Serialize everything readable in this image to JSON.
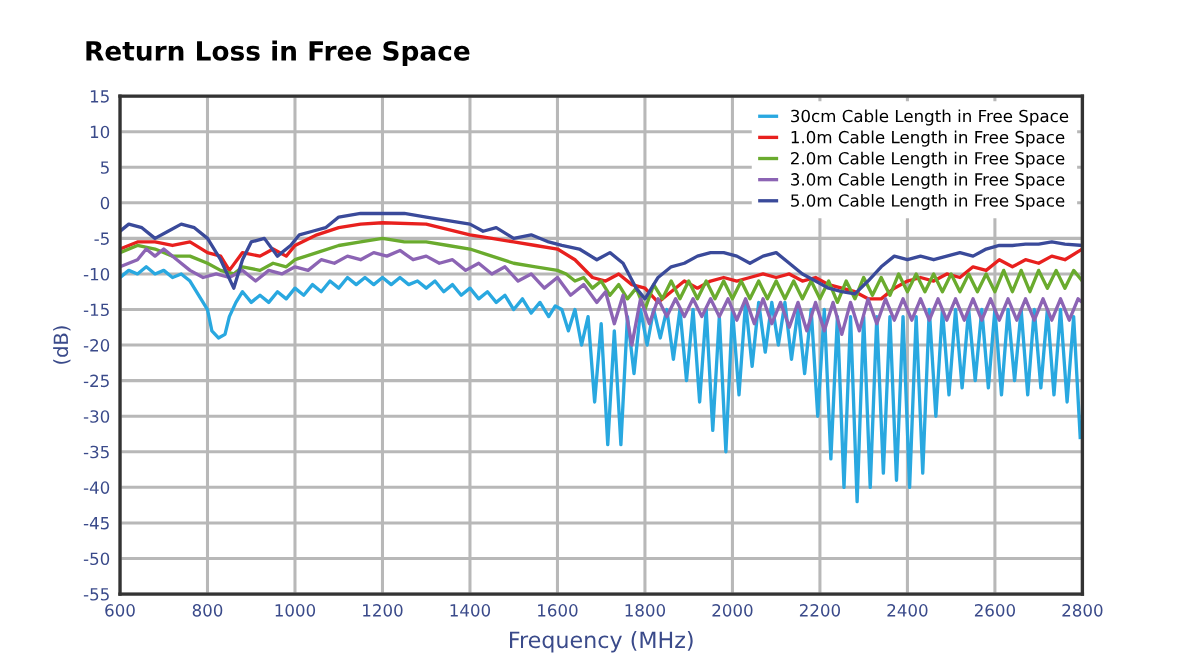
{
  "chart_data": {
    "type": "line",
    "title": "Return Loss in Free Space",
    "xlabel": "Frequency (MHz)",
    "ylabel": "(dB)",
    "xlim": [
      600,
      2800
    ],
    "xticks": [
      600,
      800,
      1000,
      1200,
      1400,
      1600,
      1800,
      2000,
      2200,
      2400,
      2600,
      2800
    ],
    "ylim": [
      -55,
      15
    ],
    "yticks": [
      -55,
      -50,
      -45,
      -40,
      -35,
      -30,
      -25,
      -20,
      -15,
      -10,
      -5,
      0,
      5,
      10,
      15
    ],
    "grid": true,
    "legend": "top right",
    "marker": "none",
    "line_style": "solid",
    "series": [
      {
        "name": "30cm Cable Length in Free Space",
        "color": "#29a8e0",
        "x": [
          600,
          620,
          640,
          660,
          680,
          700,
          720,
          740,
          760,
          780,
          800,
          810,
          825,
          840,
          850,
          865,
          880,
          900,
          920,
          940,
          960,
          980,
          1000,
          1020,
          1040,
          1060,
          1080,
          1100,
          1120,
          1140,
          1160,
          1180,
          1200,
          1220,
          1240,
          1260,
          1280,
          1300,
          1320,
          1340,
          1360,
          1380,
          1400,
          1420,
          1440,
          1460,
          1480,
          1500,
          1520,
          1540,
          1560,
          1580,
          1595,
          1610,
          1625,
          1640,
          1655,
          1670,
          1685,
          1700,
          1715,
          1730,
          1745,
          1760,
          1775,
          1790,
          1805,
          1820,
          1835,
          1850,
          1865,
          1880,
          1895,
          1910,
          1925,
          1940,
          1955,
          1970,
          1985,
          2000,
          2015,
          2030,
          2045,
          2060,
          2075,
          2090,
          2105,
          2120,
          2135,
          2150,
          2165,
          2180,
          2195,
          2210,
          2225,
          2240,
          2255,
          2270,
          2285,
          2300,
          2315,
          2330,
          2345,
          2360,
          2375,
          2390,
          2405,
          2420,
          2435,
          2450,
          2465,
          2480,
          2495,
          2510,
          2525,
          2540,
          2555,
          2570,
          2585,
          2600,
          2615,
          2630,
          2645,
          2660,
          2675,
          2690,
          2705,
          2720,
          2735,
          2750,
          2765,
          2780,
          2795
        ],
        "values": [
          -10.5,
          -9.5,
          -10,
          -9,
          -10,
          -9.5,
          -10.5,
          -10,
          -11,
          -13,
          -15,
          -18,
          -19,
          -18.5,
          -16,
          -14,
          -12.5,
          -14,
          -13,
          -14,
          -12.5,
          -13.5,
          -12,
          -13,
          -11.5,
          -12.5,
          -11,
          -12,
          -10.5,
          -11.5,
          -10.5,
          -11.5,
          -10.5,
          -11.5,
          -10.5,
          -11.5,
          -11,
          -12,
          -11,
          -12.5,
          -11.5,
          -13,
          -12,
          -13.5,
          -12.5,
          -14,
          -13,
          -15,
          -13.5,
          -15.5,
          -14,
          -16,
          -14.5,
          -15,
          -18,
          -15,
          -20,
          -16,
          -28,
          -17,
          -34,
          -18,
          -34,
          -16,
          -24,
          -15,
          -20,
          -15,
          -19,
          -15,
          -22,
          -15,
          -25,
          -15,
          -28,
          -15,
          -32,
          -16,
          -35,
          -15,
          -27,
          -14,
          -23,
          -14,
          -21,
          -14,
          -20,
          -14,
          -22,
          -15,
          -24,
          -15,
          -30,
          -15,
          -36,
          -16,
          -40,
          -16,
          -42,
          -16,
          -40,
          -16,
          -38,
          -16,
          -39,
          -16,
          -40,
          -16,
          -38,
          -15,
          -30,
          -15,
          -27,
          -15,
          -26,
          -15,
          -25,
          -15,
          -26,
          -15,
          -27,
          -15,
          -25,
          -15,
          -27,
          -15,
          -26,
          -15,
          -27,
          -15,
          -28,
          -16,
          -33
        ]
      },
      {
        "name": "1.0m Cable Length in Free Space",
        "color": "#e8201e",
        "x": [
          600,
          640,
          680,
          720,
          760,
          800,
          830,
          850,
          880,
          920,
          950,
          980,
          1000,
          1050,
          1100,
          1150,
          1200,
          1300,
          1400,
          1450,
          1500,
          1550,
          1600,
          1640,
          1680,
          1710,
          1740,
          1770,
          1800,
          1830,
          1860,
          1890,
          1920,
          1950,
          1980,
          2010,
          2040,
          2070,
          2100,
          2130,
          2160,
          2190,
          2220,
          2250,
          2280,
          2310,
          2340,
          2370,
          2400,
          2430,
          2460,
          2490,
          2520,
          2550,
          2580,
          2610,
          2640,
          2670,
          2700,
          2730,
          2760,
          2800
        ],
        "values": [
          -6.5,
          -5.5,
          -5.5,
          -6,
          -5.5,
          -7,
          -7.5,
          -9.5,
          -7,
          -7.5,
          -6.5,
          -7.5,
          -6,
          -4.5,
          -3.5,
          -3,
          -2.8,
          -3,
          -4.5,
          -5,
          -5.5,
          -6,
          -6.5,
          -8,
          -10.5,
          -11,
          -10,
          -11.5,
          -12,
          -14,
          -12.5,
          -11,
          -12,
          -11,
          -10.5,
          -11,
          -10.5,
          -10,
          -10.5,
          -10,
          -11,
          -10.5,
          -11.5,
          -12,
          -12.5,
          -13.5,
          -13.5,
          -12,
          -11,
          -10.5,
          -11,
          -10,
          -10.5,
          -9,
          -9.5,
          -8,
          -9,
          -8,
          -8.5,
          -7.5,
          -8,
          -6.5
        ]
      },
      {
        "name": "2.0m Cable Length in Free Space",
        "color": "#6aab2e",
        "x": [
          600,
          640,
          680,
          720,
          760,
          800,
          830,
          860,
          880,
          920,
          950,
          980,
          1000,
          1050,
          1100,
          1150,
          1200,
          1250,
          1300,
          1350,
          1400,
          1450,
          1500,
          1550,
          1600,
          1620,
          1640,
          1660,
          1680,
          1700,
          1720,
          1740,
          1760,
          1780,
          1800,
          1820,
          1840,
          1860,
          1880,
          1900,
          1920,
          1940,
          1960,
          1980,
          2000,
          2020,
          2040,
          2060,
          2080,
          2100,
          2120,
          2140,
          2160,
          2180,
          2200,
          2220,
          2240,
          2260,
          2280,
          2300,
          2320,
          2340,
          2360,
          2380,
          2400,
          2420,
          2440,
          2460,
          2480,
          2500,
          2520,
          2540,
          2560,
          2580,
          2600,
          2620,
          2640,
          2660,
          2680,
          2700,
          2720,
          2740,
          2760,
          2780,
          2800
        ],
        "values": [
          -7,
          -6,
          -6.5,
          -7.5,
          -7.5,
          -8.5,
          -9.5,
          -10,
          -9,
          -9.5,
          -8.5,
          -9,
          -8,
          -7,
          -6,
          -5.5,
          -5,
          -5.5,
          -5.5,
          -6,
          -6.5,
          -7.5,
          -8.5,
          -9,
          -9.5,
          -10,
          -11,
          -10.5,
          -12,
          -11,
          -13,
          -11.5,
          -13.5,
          -12,
          -15,
          -11.5,
          -13.5,
          -11,
          -13.5,
          -11,
          -13.5,
          -11,
          -13.5,
          -11,
          -13.5,
          -11,
          -13.5,
          -11,
          -13.5,
          -11,
          -13.5,
          -11,
          -13.5,
          -11,
          -13.5,
          -11,
          -14,
          -11,
          -13.5,
          -10.5,
          -13,
          -10.5,
          -13,
          -10,
          -12.5,
          -10,
          -12.5,
          -10,
          -12.5,
          -10,
          -12.5,
          -10,
          -12.5,
          -10,
          -12.5,
          -9.5,
          -12.5,
          -9.5,
          -12.5,
          -9.5,
          -12,
          -9.5,
          -12,
          -9.5,
          -11
        ]
      },
      {
        "name": "3.0m Cable Length in Free Space",
        "color": "#8c64b4",
        "x": [
          600,
          640,
          660,
          680,
          700,
          730,
          760,
          790,
          820,
          850,
          880,
          910,
          940,
          970,
          1000,
          1030,
          1060,
          1090,
          1120,
          1150,
          1180,
          1210,
          1240,
          1270,
          1300,
          1330,
          1360,
          1390,
          1420,
          1450,
          1480,
          1510,
          1540,
          1570,
          1600,
          1630,
          1660,
          1690,
          1710,
          1730,
          1750,
          1770,
          1790,
          1810,
          1830,
          1850,
          1870,
          1890,
          1910,
          1930,
          1950,
          1970,
          1990,
          2010,
          2030,
          2050,
          2070,
          2090,
          2110,
          2130,
          2150,
          2170,
          2190,
          2210,
          2230,
          2250,
          2270,
          2290,
          2310,
          2330,
          2350,
          2370,
          2390,
          2410,
          2430,
          2450,
          2470,
          2490,
          2510,
          2530,
          2550,
          2570,
          2590,
          2610,
          2630,
          2650,
          2670,
          2690,
          2710,
          2730,
          2750,
          2770,
          2790,
          2800
        ],
        "values": [
          -9,
          -8,
          -6.5,
          -7.5,
          -6.5,
          -8,
          -9.5,
          -10.5,
          -10,
          -10.5,
          -9.5,
          -11,
          -9.5,
          -10,
          -9,
          -9.5,
          -8,
          -8.5,
          -7.5,
          -8,
          -7,
          -7.5,
          -6.7,
          -8,
          -7.5,
          -8.5,
          -8,
          -9.5,
          -8.5,
          -10,
          -9,
          -11,
          -10,
          -12,
          -10.5,
          -13,
          -11.5,
          -14,
          -12.5,
          -17,
          -13,
          -20,
          -13.5,
          -17,
          -13.5,
          -16,
          -13.5,
          -16,
          -13.5,
          -16,
          -13.5,
          -16,
          -13.5,
          -16.5,
          -13.5,
          -17,
          -13.5,
          -17,
          -14,
          -17.5,
          -14,
          -18,
          -14,
          -18,
          -14,
          -18.5,
          -14,
          -18,
          -13.5,
          -17,
          -13.5,
          -16.5,
          -13.5,
          -16.5,
          -13.5,
          -16.5,
          -13.5,
          -16.5,
          -13.5,
          -16.5,
          -13.5,
          -16.5,
          -13.5,
          -16.5,
          -13.5,
          -16.5,
          -13.5,
          -16.5,
          -13.5,
          -16.5,
          -13.5,
          -16.5,
          -13.5,
          -14
        ]
      },
      {
        "name": "5.0m Cable Length in Free Space",
        "color": "#3a4a9a",
        "x": [
          600,
          620,
          650,
          680,
          710,
          740,
          770,
          800,
          830,
          860,
          880,
          900,
          930,
          960,
          990,
          1010,
          1040,
          1070,
          1100,
          1150,
          1200,
          1250,
          1300,
          1350,
          1400,
          1430,
          1460,
          1500,
          1540,
          1580,
          1610,
          1650,
          1690,
          1720,
          1750,
          1780,
          1800,
          1830,
          1860,
          1890,
          1920,
          1950,
          1980,
          2010,
          2040,
          2070,
          2100,
          2130,
          2160,
          2190,
          2220,
          2250,
          2280,
          2310,
          2340,
          2370,
          2400,
          2430,
          2460,
          2490,
          2520,
          2550,
          2580,
          2610,
          2640,
          2670,
          2700,
          2730,
          2760,
          2800
        ],
        "values": [
          -4,
          -3,
          -3.5,
          -5,
          -4,
          -3,
          -3.5,
          -5,
          -8,
          -12,
          -8,
          -5.5,
          -5,
          -7.5,
          -6,
          -4.5,
          -4,
          -3.5,
          -2,
          -1.5,
          -1.5,
          -1.5,
          -2,
          -2.5,
          -3,
          -4,
          -3.5,
          -5,
          -4.5,
          -5.5,
          -6,
          -6.5,
          -8,
          -7,
          -8.5,
          -12,
          -13.5,
          -10.5,
          -9,
          -8.5,
          -7.5,
          -7,
          -7,
          -7.5,
          -8.5,
          -7.5,
          -7,
          -8.5,
          -10,
          -11,
          -12,
          -12.5,
          -12.8,
          -11,
          -9,
          -7.5,
          -8,
          -7.5,
          -8,
          -7.5,
          -7,
          -7.5,
          -6.5,
          -6,
          -6,
          -5.8,
          -5.8,
          -5.5,
          -5.8,
          -6
        ]
      }
    ]
  }
}
